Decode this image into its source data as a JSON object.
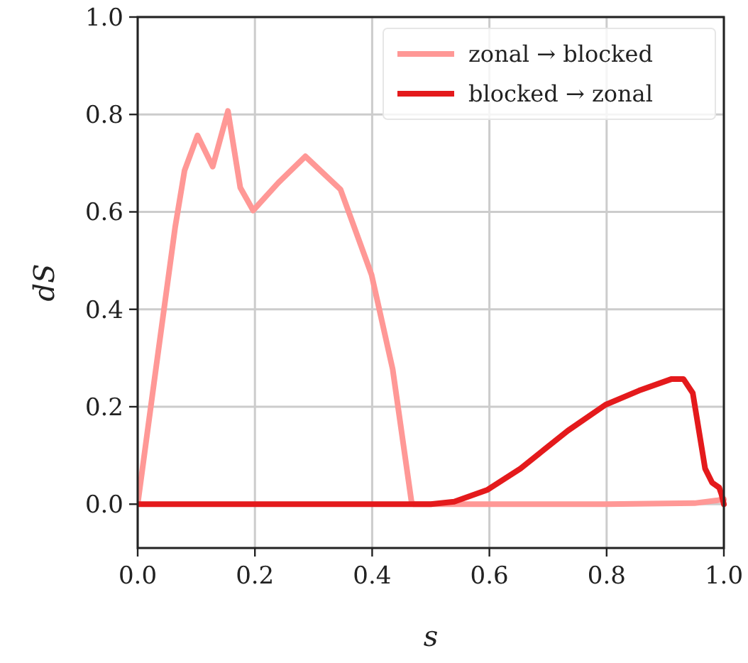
{
  "chart_data": {
    "type": "line",
    "xlabel": "s",
    "ylabel": "dS",
    "xlim": [
      0,
      1
    ],
    "ylim": [
      -0.09,
      1
    ],
    "xticks": [
      {
        "value": 0,
        "label": "0.0"
      },
      {
        "value": 0.2,
        "label": "0.2"
      },
      {
        "value": 0.4,
        "label": "0.4"
      },
      {
        "value": 0.6,
        "label": "0.6"
      },
      {
        "value": 0.8,
        "label": "0.8"
      },
      {
        "value": 1,
        "label": "1.0"
      }
    ],
    "yticks": [
      {
        "value": 0,
        "label": "0.0"
      },
      {
        "value": 0.2,
        "label": "0.2"
      },
      {
        "value": 0.4,
        "label": "0.4"
      },
      {
        "value": 0.6,
        "label": "0.6"
      },
      {
        "value": 0.8,
        "label": "0.8"
      },
      {
        "value": 1,
        "label": "1.0"
      }
    ],
    "grid": true,
    "legend": "top right",
    "series": [
      {
        "name": "zonal → blocked",
        "color": "#ff9896",
        "x": [
          0,
          0.031,
          0.064,
          0.08,
          0.102,
          0.128,
          0.154,
          0.175,
          0.197,
          0.24,
          0.286,
          0.346,
          0.399,
          0.435,
          0.467,
          0.47,
          0.6,
          0.8,
          0.95,
          0.99,
          1
        ],
        "values": [
          0,
          0.277,
          0.569,
          0.685,
          0.757,
          0.693,
          0.807,
          0.65,
          0.603,
          0.66,
          0.714,
          0.646,
          0.471,
          0.277,
          0.006,
          0,
          0,
          0,
          0.002,
          0.008,
          0.01
        ]
      },
      {
        "name": "blocked → zonal",
        "color": "#e41a1c",
        "x": [
          0,
          0.2,
          0.4,
          0.5,
          0.54,
          0.596,
          0.653,
          0.734,
          0.798,
          0.855,
          0.911,
          0.931,
          0.947,
          0.968,
          0.98,
          0.992,
          0.996,
          1
        ],
        "values": [
          0,
          0,
          0,
          0,
          0.005,
          0.029,
          0.073,
          0.151,
          0.204,
          0.233,
          0.257,
          0.257,
          0.228,
          0.073,
          0.044,
          0.034,
          0.02,
          0
        ]
      }
    ]
  }
}
